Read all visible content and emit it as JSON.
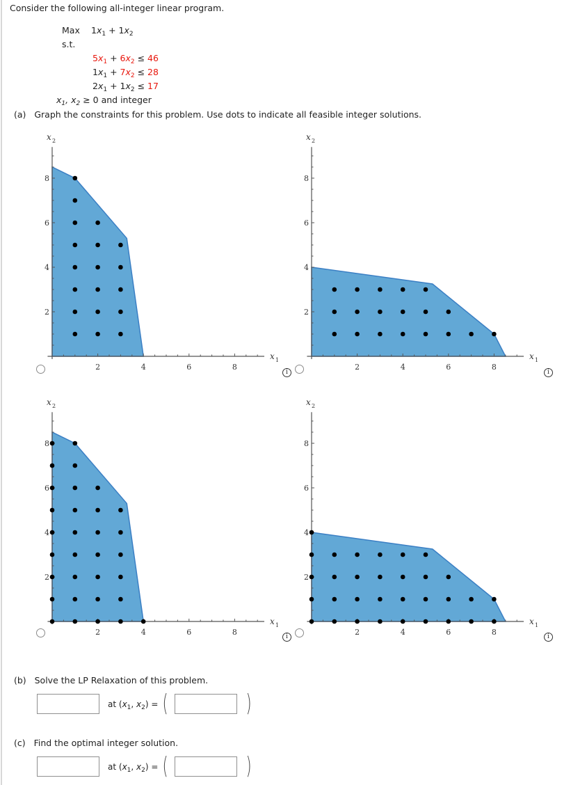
{
  "intro": "Consider the following all-integer linear program.",
  "lp": {
    "objective_label": "Max",
    "objective": [
      {
        "coef": "1",
        "var": "x",
        "sub": "1"
      },
      {
        "op": "+"
      },
      {
        "coef": "1",
        "var": "x",
        "sub": "2"
      }
    ],
    "st_label": "s.t.",
    "constraints": [
      {
        "a1": "5",
        "a2": "6",
        "rel": "≤",
        "rhs": "46",
        "a1_red": true,
        "a2_red": true,
        "rhs_red": true
      },
      {
        "a1": "1",
        "a2": "7",
        "rel": "≤",
        "rhs": "28",
        "a1_red": false,
        "a2_red": true,
        "rhs_red": true
      },
      {
        "a1": "2",
        "a2": "1",
        "rel": "≤",
        "rhs": "17",
        "a1_red": false,
        "a2_red": false,
        "rhs_red": true
      }
    ],
    "nonneg": "≥ 0 and integer"
  },
  "part_a": {
    "label": "(a)",
    "text": "Graph the constraints for this problem. Use dots to indicate all feasible integer solutions."
  },
  "part_b": {
    "label": "(b)",
    "text": "Solve the LP Relaxation of this problem.",
    "value_input": "",
    "point_input": "",
    "at_text": "at (x",
    "eq_text": ") ="
  },
  "part_c": {
    "label": "(c)",
    "text": "Find the optimal integer solution.",
    "value_input": "",
    "point_input": "",
    "at_text": "at (x",
    "eq_text": ") ="
  },
  "colors": {
    "fill": "#62a8d6",
    "stroke": "#3b7fc4",
    "dot": "#000000",
    "axis": "#555555",
    "red": "#e8160c"
  },
  "chart_data": [
    {
      "id": "option-1",
      "type": "scatter",
      "xlabel": "x1",
      "ylabel": "x2",
      "xlim": [
        0,
        9.3
      ],
      "ylim": [
        0,
        9.4
      ],
      "xticks": [
        2,
        4,
        6,
        8
      ],
      "yticks": [
        2,
        4,
        6,
        8
      ],
      "region": [
        [
          0,
          0
        ],
        [
          0,
          8.5
        ],
        [
          1,
          8
        ],
        [
          3.27,
          5.3
        ],
        [
          4,
          0
        ]
      ],
      "points": [
        [
          1,
          1
        ],
        [
          2,
          1
        ],
        [
          3,
          1
        ],
        [
          1,
          2
        ],
        [
          2,
          2
        ],
        [
          3,
          2
        ],
        [
          1,
          3
        ],
        [
          2,
          3
        ],
        [
          3,
          3
        ],
        [
          1,
          4
        ],
        [
          2,
          4
        ],
        [
          3,
          4
        ],
        [
          1,
          5
        ],
        [
          2,
          5
        ],
        [
          3,
          5
        ],
        [
          1,
          6
        ],
        [
          2,
          6
        ],
        [
          1,
          7
        ],
        [
          1,
          8
        ]
      ]
    },
    {
      "id": "option-2",
      "type": "scatter",
      "xlabel": "x1",
      "ylabel": "x2",
      "xlim": [
        0,
        9.3
      ],
      "ylim": [
        0,
        9.4
      ],
      "xticks": [
        2,
        4,
        6,
        8
      ],
      "yticks": [
        2,
        4,
        6,
        8
      ],
      "region": [
        [
          0,
          0
        ],
        [
          0,
          4
        ],
        [
          5.3,
          3.25
        ],
        [
          8,
          1
        ],
        [
          8.5,
          0
        ]
      ],
      "points": [
        [
          1,
          1
        ],
        [
          2,
          1
        ],
        [
          3,
          1
        ],
        [
          4,
          1
        ],
        [
          5,
          1
        ],
        [
          6,
          1
        ],
        [
          7,
          1
        ],
        [
          8,
          1
        ],
        [
          1,
          2
        ],
        [
          2,
          2
        ],
        [
          3,
          2
        ],
        [
          4,
          2
        ],
        [
          5,
          2
        ],
        [
          6,
          2
        ],
        [
          1,
          3
        ],
        [
          2,
          3
        ],
        [
          3,
          3
        ],
        [
          4,
          3
        ],
        [
          5,
          3
        ]
      ]
    },
    {
      "id": "option-3",
      "type": "scatter",
      "xlabel": "x1",
      "ylabel": "x2",
      "xlim": [
        0,
        9.3
      ],
      "ylim": [
        0,
        9.4
      ],
      "xticks": [
        2,
        4,
        6,
        8
      ],
      "yticks": [
        2,
        4,
        6,
        8
      ],
      "region": [
        [
          0,
          0
        ],
        [
          0,
          8.5
        ],
        [
          1,
          8
        ],
        [
          3.27,
          5.3
        ],
        [
          4,
          0
        ]
      ],
      "points": [
        [
          0,
          0
        ],
        [
          1,
          0
        ],
        [
          2,
          0
        ],
        [
          3,
          0
        ],
        [
          4,
          0
        ],
        [
          0,
          1
        ],
        [
          1,
          1
        ],
        [
          2,
          1
        ],
        [
          3,
          1
        ],
        [
          0,
          2
        ],
        [
          1,
          2
        ],
        [
          2,
          2
        ],
        [
          3,
          2
        ],
        [
          0,
          3
        ],
        [
          1,
          3
        ],
        [
          2,
          3
        ],
        [
          3,
          3
        ],
        [
          0,
          4
        ],
        [
          1,
          4
        ],
        [
          2,
          4
        ],
        [
          3,
          4
        ],
        [
          0,
          5
        ],
        [
          1,
          5
        ],
        [
          2,
          5
        ],
        [
          3,
          5
        ],
        [
          0,
          6
        ],
        [
          1,
          6
        ],
        [
          2,
          6
        ],
        [
          0,
          7
        ],
        [
          1,
          7
        ],
        [
          0,
          8
        ],
        [
          1,
          8
        ]
      ]
    },
    {
      "id": "option-4",
      "type": "scatter",
      "xlabel": "x1",
      "ylabel": "x2",
      "xlim": [
        0,
        9.3
      ],
      "ylim": [
        0,
        9.4
      ],
      "xticks": [
        2,
        4,
        6,
        8
      ],
      "yticks": [
        2,
        4,
        6,
        8
      ],
      "region": [
        [
          0,
          0
        ],
        [
          0,
          4
        ],
        [
          5.3,
          3.25
        ],
        [
          8,
          1
        ],
        [
          8.5,
          0
        ]
      ],
      "points": [
        [
          0,
          0
        ],
        [
          1,
          0
        ],
        [
          2,
          0
        ],
        [
          3,
          0
        ],
        [
          4,
          0
        ],
        [
          5,
          0
        ],
        [
          6,
          0
        ],
        [
          7,
          0
        ],
        [
          8,
          0
        ],
        [
          0,
          1
        ],
        [
          1,
          1
        ],
        [
          2,
          1
        ],
        [
          3,
          1
        ],
        [
          4,
          1
        ],
        [
          5,
          1
        ],
        [
          6,
          1
        ],
        [
          7,
          1
        ],
        [
          8,
          1
        ],
        [
          0,
          2
        ],
        [
          1,
          2
        ],
        [
          2,
          2
        ],
        [
          3,
          2
        ],
        [
          4,
          2
        ],
        [
          5,
          2
        ],
        [
          6,
          2
        ],
        [
          0,
          3
        ],
        [
          1,
          3
        ],
        [
          2,
          3
        ],
        [
          3,
          3
        ],
        [
          4,
          3
        ],
        [
          5,
          3
        ],
        [
          0,
          4
        ]
      ]
    }
  ],
  "info_icon_glyph": "i"
}
